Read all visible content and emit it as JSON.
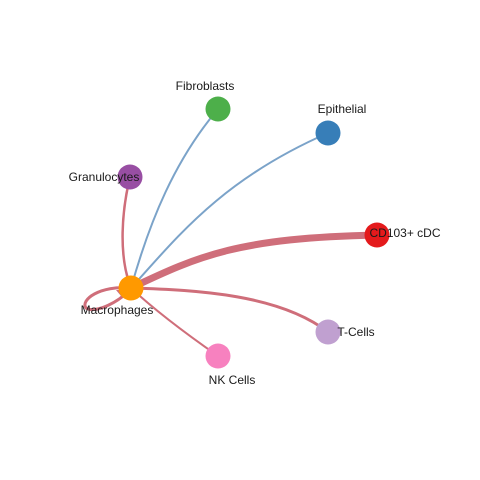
{
  "nodes": [
    {
      "id": "fibroblasts",
      "label": "Fibroblasts",
      "color": "#4DAF4A"
    },
    {
      "id": "epithelial",
      "label": "Epithelial",
      "color": "#377EB8"
    },
    {
      "id": "granulocytes",
      "label": "Granulocytes",
      "color": "#984EA3"
    },
    {
      "id": "cd103",
      "label": "CD103+ cDC",
      "color": "#E41A1C"
    },
    {
      "id": "macrophages",
      "label": "Macrophages",
      "color": "#FF9900"
    },
    {
      "id": "tcells",
      "label": "T-Cells",
      "color": "#C0A0D0"
    },
    {
      "id": "nkcells",
      "label": "NK Cells",
      "color": "#F781BF"
    }
  ],
  "edges": [
    {
      "id": "mac-fib",
      "source": "macrophages",
      "target": "fibroblasts",
      "color": "#7BA3C9",
      "weight": "light"
    },
    {
      "id": "mac-epi",
      "source": "macrophages",
      "target": "epithelial",
      "color": "#7BA3C9",
      "weight": "light"
    },
    {
      "id": "mac-gran",
      "source": "macrophages",
      "target": "granulocytes",
      "color": "#CF6E7A",
      "weight": "medium"
    },
    {
      "id": "mac-cd103",
      "source": "macrophages",
      "target": "cd103",
      "color": "#CF6E7A",
      "weight": "heavy"
    },
    {
      "id": "mac-tcell",
      "source": "macrophages",
      "target": "tcells",
      "color": "#CF6E7A",
      "weight": "medium"
    },
    {
      "id": "mac-nk",
      "source": "macrophages",
      "target": "nkcells",
      "color": "#CF6E7A",
      "weight": "light"
    },
    {
      "id": "mac-self",
      "source": "macrophages",
      "target": "macrophages",
      "color": "#CF6E7A",
      "weight": "medium"
    }
  ]
}
